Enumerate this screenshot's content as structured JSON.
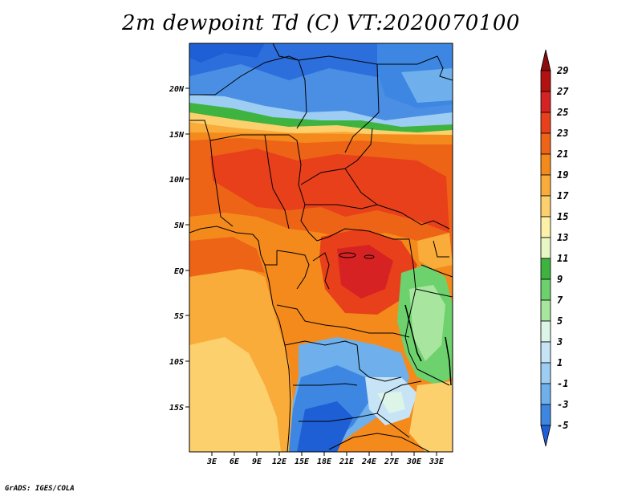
{
  "title": "2m dewpoint Td (C) VT:2020070100",
  "credit": "GrADS: IGES/COLA",
  "map": {
    "lat_labels": [
      "20N",
      "15N",
      "10N",
      "5N",
      "EQ",
      "5S",
      "10S",
      "15S"
    ],
    "lon_labels": [
      "3E",
      "6E",
      "9E",
      "12E",
      "15E",
      "18E",
      "21E",
      "24E",
      "27E",
      "30E",
      "33E"
    ]
  },
  "colorbar": {
    "labels": [
      "29",
      "27",
      "25",
      "23",
      "21",
      "19",
      "17",
      "15",
      "13",
      "11",
      "9",
      "7",
      "5",
      "3",
      "1",
      "-1",
      "-3",
      "-5"
    ],
    "colors": [
      "#8c0d0d",
      "#b31212",
      "#d62222",
      "#e8401a",
      "#ee6417",
      "#f58a1c",
      "#f9ac3a",
      "#fbd06d",
      "#fdf0a8",
      "#e8f8c4",
      "#3fb33f",
      "#6dd16d",
      "#a8e6a0",
      "#dcf5e8",
      "#c6e4f6",
      "#9dcdf2",
      "#6fb0ec",
      "#3d87e3",
      "#1f5fd6"
    ]
  }
}
